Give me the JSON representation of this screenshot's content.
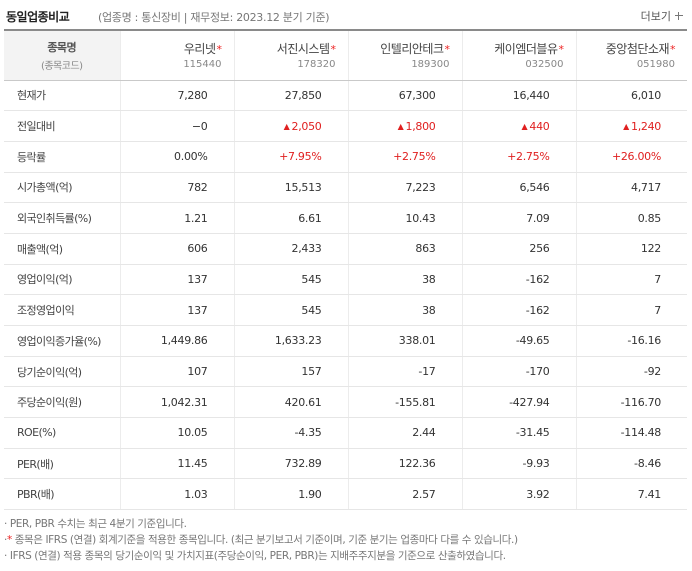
{
  "header": {
    "title": "동일업종비교",
    "meta": "(업종명 : 통신장비 | 재무정보: 2023.12 분기 기준)",
    "more_label": "더보기"
  },
  "table": {
    "stub_line1": "종목명",
    "stub_line2": "(종목코드)",
    "star": "*",
    "companies": [
      {
        "name": "우리넷",
        "code": "115440"
      },
      {
        "name": "서진시스템",
        "code": "178320"
      },
      {
        "name": "인텔리안테크",
        "code": "189300"
      },
      {
        "name": "케이엠더블유",
        "code": "032500"
      },
      {
        "name": "중앙첨단소재",
        "code": "051980"
      }
    ],
    "up_arrow": "▲",
    "rows": [
      {
        "label": "현재가",
        "values": [
          "7,280",
          "27,850",
          "67,300",
          "16,440",
          "6,010"
        ]
      },
      {
        "label": "전일대비",
        "values": [
          "−0",
          "2,050",
          "1,800",
          "440",
          "1,240"
        ]
      },
      {
        "label": "등락률",
        "values": [
          "0.00%",
          "+7.95%",
          "+2.75%",
          "+2.75%",
          "+26.00%"
        ]
      },
      {
        "label": "시가총액(억)",
        "values": [
          "782",
          "15,513",
          "7,223",
          "6,546",
          "4,717"
        ]
      },
      {
        "label": "외국인취득률(%)",
        "values": [
          "1.21",
          "6.61",
          "10.43",
          "7.09",
          "0.85"
        ]
      },
      {
        "label": "매출액(억)",
        "values": [
          "606",
          "2,433",
          "863",
          "256",
          "122"
        ]
      },
      {
        "label": "영업이익(억)",
        "values": [
          "137",
          "545",
          "38",
          "-162",
          "7"
        ]
      },
      {
        "label": "조정영업이익",
        "values": [
          "137",
          "545",
          "38",
          "-162",
          "7"
        ]
      },
      {
        "label": "영업이익증가율(%)",
        "values": [
          "1,449.86",
          "1,633.23",
          "338.01",
          "-49.65",
          "-16.16"
        ]
      },
      {
        "label": "당기순이익(억)",
        "values": [
          "107",
          "157",
          "-17",
          "-170",
          "-92"
        ]
      },
      {
        "label": "주당순이익(원)",
        "values": [
          "1,042.31",
          "420.61",
          "-155.81",
          "-427.94",
          "-116.70"
        ]
      },
      {
        "label": "ROE(%)",
        "values": [
          "10.05",
          "-4.35",
          "2.44",
          "-31.45",
          "-114.48"
        ]
      },
      {
        "label": "PER(배)",
        "values": [
          "11.45",
          "732.89",
          "122.36",
          "-9.93",
          "-8.46"
        ]
      },
      {
        "label": "PBR(배)",
        "values": [
          "1.03",
          "1.90",
          "2.57",
          "3.92",
          "7.41"
        ]
      }
    ]
  },
  "notes": {
    "n1": "· PER, PBR 수치는 최근 4분기 기준입니다.",
    "n2_prefix": "·",
    "n2_star": "*",
    "n2_rest": " 종목은 IFRS (연결) 회계기준을 적용한 종목입니다. (최근 분기보고서 기준이며, 기준 분기는 업종마다 다를 수 있습니다.)",
    "n3": "· IFRS (연결) 적용 종목의 당기순이익 및 가치지표(주당순이익, PER, PBR)는 지배주주지분을 기준으로 산출하였습니다."
  },
  "colors": {
    "up": "#e02020",
    "star": "#e22222"
  },
  "icons": {
    "more": "plus-icon",
    "up": "triangle-up-icon"
  }
}
